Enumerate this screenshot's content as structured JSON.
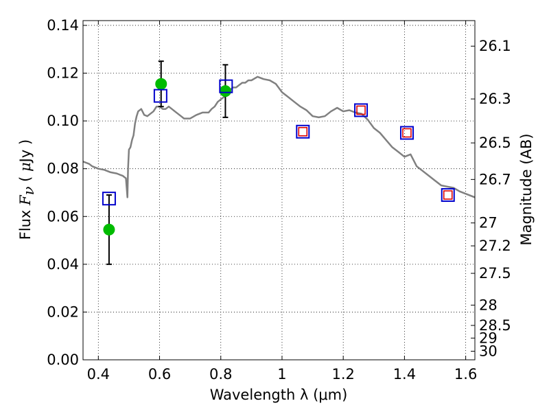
{
  "chart_data": {
    "type": "scatter",
    "title": "",
    "xlabel": "Wavelength  λ (μm)",
    "ylabel": "Flux  F_ν  ( μJy )",
    "ylabel_right": "Magnitude (AB)",
    "xlim": [
      0.35,
      1.63
    ],
    "ylim": [
      0.0,
      0.142
    ],
    "x_ticks": [
      0.4,
      0.6,
      0.8,
      1.0,
      1.2,
      1.4,
      1.6
    ],
    "x_tick_labels": [
      "0.4",
      "0.6",
      "0.8",
      "1",
      "1.2",
      "1.4",
      "1.6"
    ],
    "y_ticks": [
      0.0,
      0.02,
      0.04,
      0.06,
      0.08,
      0.1,
      0.12,
      0.14
    ],
    "y_tick_labels": [
      "0.00",
      "0.02",
      "0.04",
      "0.06",
      "0.08",
      "0.10",
      "0.12",
      "0.14"
    ],
    "right_axis_ticks": [
      {
        "label": "26.1",
        "flux": 0.1313
      },
      {
        "label": "26.3",
        "flux": 0.1092
      },
      {
        "label": "26.5",
        "flux": 0.0908
      },
      {
        "label": "26.7",
        "flux": 0.0755
      },
      {
        "label": "27",
        "flux": 0.0573
      },
      {
        "label": "27.2",
        "flux": 0.0477
      },
      {
        "label": "27.5",
        "flux": 0.0362
      },
      {
        "label": "28",
        "flux": 0.0229
      },
      {
        "label": "28.5",
        "flux": 0.0144
      },
      {
        "label": "29",
        "flux": 0.0091
      },
      {
        "label": "30",
        "flux": 0.0036
      }
    ],
    "grid": true,
    "series": [
      {
        "kind": "line",
        "color": "#808080",
        "x": [
          0.35,
          0.37,
          0.38,
          0.4,
          0.42,
          0.44,
          0.46,
          0.47,
          0.48,
          0.485,
          0.49,
          0.495,
          0.497,
          0.5,
          0.505,
          0.51,
          0.515,
          0.52,
          0.525,
          0.53,
          0.54,
          0.55,
          0.56,
          0.57,
          0.58,
          0.59,
          0.6,
          0.61,
          0.62,
          0.63,
          0.64,
          0.65,
          0.66,
          0.67,
          0.68,
          0.69,
          0.7,
          0.72,
          0.74,
          0.75,
          0.76,
          0.77,
          0.78,
          0.79,
          0.8,
          0.81,
          0.82,
          0.83,
          0.84,
          0.85,
          0.86,
          0.87,
          0.88,
          0.89,
          0.9,
          0.92,
          0.94,
          0.96,
          0.98,
          1.0,
          1.02,
          1.04,
          1.06,
          1.08,
          1.1,
          1.12,
          1.14,
          1.15,
          1.16,
          1.18,
          1.2,
          1.22,
          1.24,
          1.26,
          1.28,
          1.3,
          1.32,
          1.34,
          1.36,
          1.38,
          1.4,
          1.42,
          1.44,
          1.46,
          1.48,
          1.5,
          1.52,
          1.54,
          1.56,
          1.58,
          1.6,
          1.63
        ],
        "y": [
          0.083,
          0.082,
          0.081,
          0.08,
          0.0795,
          0.0785,
          0.078,
          0.0775,
          0.077,
          0.0765,
          0.076,
          0.068,
          0.08,
          0.088,
          0.089,
          0.092,
          0.094,
          0.099,
          0.102,
          0.104,
          0.105,
          0.1025,
          0.102,
          0.103,
          0.104,
          0.106,
          0.106,
          0.105,
          0.105,
          0.106,
          0.105,
          0.104,
          0.103,
          0.102,
          0.101,
          0.101,
          0.101,
          0.1025,
          0.1035,
          0.1035,
          0.1035,
          0.105,
          0.106,
          0.108,
          0.109,
          0.11,
          0.111,
          0.113,
          0.114,
          0.114,
          0.115,
          0.116,
          0.116,
          0.117,
          0.117,
          0.1185,
          0.1175,
          0.117,
          0.1155,
          0.112,
          0.11,
          0.108,
          0.106,
          0.1045,
          0.102,
          0.1015,
          0.102,
          0.103,
          0.104,
          0.1055,
          0.104,
          0.1045,
          0.1035,
          0.103,
          0.1005,
          0.097,
          0.095,
          0.092,
          0.089,
          0.087,
          0.085,
          0.086,
          0.081,
          0.079,
          0.077,
          0.075,
          0.073,
          0.0725,
          0.072,
          0.0705,
          0.0695,
          0.068
        ]
      },
      {
        "kind": "points",
        "name": "",
        "marker": "circle",
        "color": "#00bb00",
        "x": [
          0.435,
          0.605,
          0.815
        ],
        "y": [
          0.0545,
          0.1155,
          0.1125
        ],
        "yerr": [
          0.0145,
          0.0095,
          0.011
        ]
      },
      {
        "kind": "points",
        "name": "",
        "marker": "square-open",
        "color": "#0000cc",
        "x": [
          0.435,
          0.603,
          0.817,
          1.068,
          1.258,
          1.408,
          1.542
        ],
        "y": [
          0.0675,
          0.1105,
          0.1145,
          0.0955,
          0.1045,
          0.095,
          0.069
        ]
      },
      {
        "kind": "points",
        "name": "",
        "marker": "square-open-small",
        "color": "#dd0000",
        "x": [
          1.068,
          1.258,
          1.408,
          1.542
        ],
        "y": [
          0.0955,
          0.1045,
          0.095,
          0.069
        ]
      }
    ]
  }
}
